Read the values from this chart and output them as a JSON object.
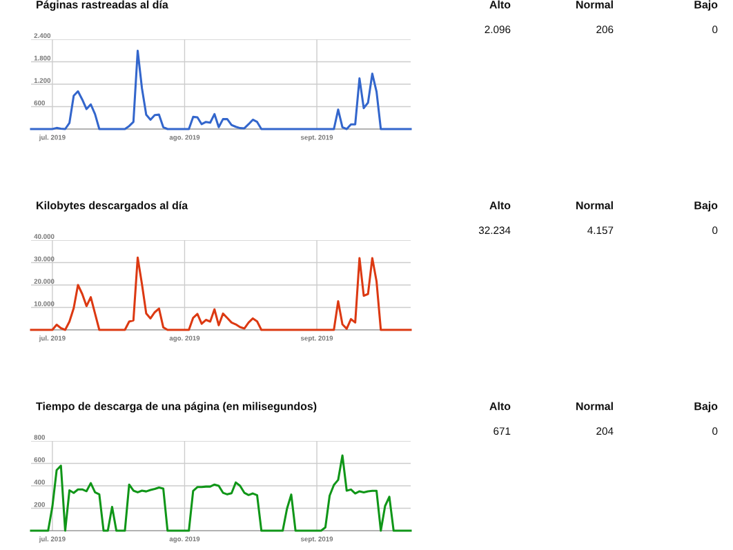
{
  "chart_data": [
    {
      "type": "line",
      "title": "Páginas rastreadas al día",
      "x": [
        "2019-06-26",
        "2019-06-27",
        "2019-06-28",
        "2019-06-29",
        "2019-06-30",
        "2019-07-01",
        "2019-07-02",
        "2019-07-03",
        "2019-07-04",
        "2019-07-05",
        "2019-07-06",
        "2019-07-07",
        "2019-07-08",
        "2019-07-09",
        "2019-07-10",
        "2019-07-11",
        "2019-07-12",
        "2019-07-13",
        "2019-07-14",
        "2019-07-15",
        "2019-07-16",
        "2019-07-17",
        "2019-07-18",
        "2019-07-19",
        "2019-07-20",
        "2019-07-21",
        "2019-07-22",
        "2019-07-23",
        "2019-07-24",
        "2019-07-25",
        "2019-07-26",
        "2019-07-27",
        "2019-07-28",
        "2019-07-29",
        "2019-07-30",
        "2019-07-31",
        "2019-08-01",
        "2019-08-02",
        "2019-08-03",
        "2019-08-04",
        "2019-08-05",
        "2019-08-06",
        "2019-08-07",
        "2019-08-08",
        "2019-08-09",
        "2019-08-10",
        "2019-08-11",
        "2019-08-12",
        "2019-08-13",
        "2019-08-14",
        "2019-08-15",
        "2019-08-16",
        "2019-08-17",
        "2019-08-18",
        "2019-08-19",
        "2019-08-20",
        "2019-08-21",
        "2019-08-22",
        "2019-08-23",
        "2019-08-24",
        "2019-08-25",
        "2019-08-26",
        "2019-08-27",
        "2019-08-28",
        "2019-08-29",
        "2019-08-30",
        "2019-08-31",
        "2019-09-01",
        "2019-09-02",
        "2019-09-03",
        "2019-09-04",
        "2019-09-05",
        "2019-09-06",
        "2019-09-07",
        "2019-09-08",
        "2019-09-09",
        "2019-09-10",
        "2019-09-11",
        "2019-09-12",
        "2019-09-13",
        "2019-09-14",
        "2019-09-15",
        "2019-09-16",
        "2019-09-17",
        "2019-09-18",
        "2019-09-19",
        "2019-09-20",
        "2019-09-21",
        "2019-09-22",
        "2019-09-23"
      ],
      "series": [
        {
          "color": "#3366cc",
          "values": [
            0,
            0,
            0,
            0,
            0,
            0,
            30,
            10,
            0,
            165,
            890,
            1010,
            790,
            535,
            660,
            400,
            0,
            0,
            0,
            0,
            0,
            0,
            0,
            80,
            190,
            2096,
            1090,
            385,
            250,
            375,
            385,
            50,
            0,
            0,
            0,
            0,
            0,
            0,
            325,
            315,
            130,
            190,
            170,
            400,
            50,
            265,
            265,
            110,
            60,
            25,
            20,
            130,
            250,
            190,
            0,
            0,
            0,
            0,
            0,
            0,
            0,
            0,
            0,
            0,
            0,
            0,
            0,
            0,
            0,
            0,
            0,
            0,
            520,
            50,
            0,
            125,
            125,
            1355,
            560,
            705,
            1480,
            1000,
            0,
            0,
            0,
            0,
            0,
            0,
            0,
            0
          ]
        }
      ],
      "xlim": [
        "2019-06-26",
        "2019-09-23"
      ],
      "xticks": [
        {
          "value": "2019-07-01",
          "label": "jul. 2019"
        },
        {
          "value": "2019-08-01",
          "label": "ago. 2019"
        },
        {
          "value": "2019-09-01",
          "label": "sept. 2019"
        }
      ],
      "ylim": [
        0,
        2400
      ],
      "yticks": [
        {
          "value": 600,
          "label": "600"
        },
        {
          "value": 1200,
          "label": "1.200"
        },
        {
          "value": 1800,
          "label": "1.800"
        },
        {
          "value": 2400,
          "label": "2.400"
        }
      ],
      "grid": true,
      "marker": "none",
      "line_style": "solid",
      "annotations": [
        "Alto",
        "Normal",
        "Bajo",
        "2.096",
        "206",
        "0"
      ]
    },
    {
      "type": "line",
      "title": "Kilobytes descargados al día",
      "x": [
        "2019-06-26",
        "2019-06-27",
        "2019-06-28",
        "2019-06-29",
        "2019-06-30",
        "2019-07-01",
        "2019-07-02",
        "2019-07-03",
        "2019-07-04",
        "2019-07-05",
        "2019-07-06",
        "2019-07-07",
        "2019-07-08",
        "2019-07-09",
        "2019-07-10",
        "2019-07-11",
        "2019-07-12",
        "2019-07-13",
        "2019-07-14",
        "2019-07-15",
        "2019-07-16",
        "2019-07-17",
        "2019-07-18",
        "2019-07-19",
        "2019-07-20",
        "2019-07-21",
        "2019-07-22",
        "2019-07-23",
        "2019-07-24",
        "2019-07-25",
        "2019-07-26",
        "2019-07-27",
        "2019-07-28",
        "2019-07-29",
        "2019-07-30",
        "2019-07-31",
        "2019-08-01",
        "2019-08-02",
        "2019-08-03",
        "2019-08-04",
        "2019-08-05",
        "2019-08-06",
        "2019-08-07",
        "2019-08-08",
        "2019-08-09",
        "2019-08-10",
        "2019-08-11",
        "2019-08-12",
        "2019-08-13",
        "2019-08-14",
        "2019-08-15",
        "2019-08-16",
        "2019-08-17",
        "2019-08-18",
        "2019-08-19",
        "2019-08-20",
        "2019-08-21",
        "2019-08-22",
        "2019-08-23",
        "2019-08-24",
        "2019-08-25",
        "2019-08-26",
        "2019-08-27",
        "2019-08-28",
        "2019-08-29",
        "2019-08-30",
        "2019-08-31",
        "2019-09-01",
        "2019-09-02",
        "2019-09-03",
        "2019-09-04",
        "2019-09-05",
        "2019-09-06",
        "2019-09-07",
        "2019-09-08",
        "2019-09-09",
        "2019-09-10",
        "2019-09-11",
        "2019-09-12",
        "2019-09-13",
        "2019-09-14",
        "2019-09-15",
        "2019-09-16",
        "2019-09-17",
        "2019-09-18",
        "2019-09-19",
        "2019-09-20",
        "2019-09-21",
        "2019-09-22",
        "2019-09-23"
      ],
      "series": [
        {
          "color": "#dc3912",
          "values": [
            0,
            0,
            0,
            0,
            0,
            0,
            2300,
            760,
            0,
            3700,
            9700,
            20000,
            16000,
            10600,
            14600,
            7300,
            0,
            0,
            0,
            0,
            0,
            0,
            0,
            3700,
            4250,
            32234,
            20400,
            7300,
            5100,
            7850,
            9500,
            1100,
            0,
            0,
            0,
            0,
            0,
            0,
            5350,
            7100,
            2700,
            4450,
            3700,
            9150,
            2050,
            7250,
            5300,
            3260,
            2450,
            1220,
            610,
            3260,
            5100,
            3770,
            0,
            0,
            0,
            0,
            0,
            0,
            0,
            0,
            0,
            0,
            0,
            0,
            0,
            0,
            0,
            0,
            0,
            0,
            12750,
            2450,
            510,
            4800,
            3260,
            32000,
            15200,
            16000,
            32000,
            21600,
            0,
            0,
            0,
            0,
            0,
            0,
            0,
            0
          ]
        }
      ],
      "xlim": [
        "2019-06-26",
        "2019-09-23"
      ],
      "xticks": [
        {
          "value": "2019-07-01",
          "label": "jul. 2019"
        },
        {
          "value": "2019-08-01",
          "label": "ago. 2019"
        },
        {
          "value": "2019-09-01",
          "label": "sept. 2019"
        }
      ],
      "ylim": [
        0,
        40000
      ],
      "yticks": [
        {
          "value": 10000,
          "label": "10.000"
        },
        {
          "value": 20000,
          "label": "20.000"
        },
        {
          "value": 30000,
          "label": "30.000"
        },
        {
          "value": 40000,
          "label": "40.000"
        }
      ],
      "grid": true,
      "marker": "none",
      "line_style": "solid",
      "annotations": [
        "Alto",
        "Normal",
        "Bajo",
        "32.234",
        "4.157",
        "0"
      ]
    },
    {
      "type": "line",
      "title": "Tiempo de descarga de una página (en milisegundos)",
      "x": [
        "2019-06-26",
        "2019-06-27",
        "2019-06-28",
        "2019-06-29",
        "2019-06-30",
        "2019-07-01",
        "2019-07-02",
        "2019-07-03",
        "2019-07-04",
        "2019-07-05",
        "2019-07-06",
        "2019-07-07",
        "2019-07-08",
        "2019-07-09",
        "2019-07-10",
        "2019-07-11",
        "2019-07-12",
        "2019-07-13",
        "2019-07-14",
        "2019-07-15",
        "2019-07-16",
        "2019-07-17",
        "2019-07-18",
        "2019-07-19",
        "2019-07-20",
        "2019-07-21",
        "2019-07-22",
        "2019-07-23",
        "2019-07-24",
        "2019-07-25",
        "2019-07-26",
        "2019-07-27",
        "2019-07-28",
        "2019-07-29",
        "2019-07-30",
        "2019-07-31",
        "2019-08-01",
        "2019-08-02",
        "2019-08-03",
        "2019-08-04",
        "2019-08-05",
        "2019-08-06",
        "2019-08-07",
        "2019-08-08",
        "2019-08-09",
        "2019-08-10",
        "2019-08-11",
        "2019-08-12",
        "2019-08-13",
        "2019-08-14",
        "2019-08-15",
        "2019-08-16",
        "2019-08-17",
        "2019-08-18",
        "2019-08-19",
        "2019-08-20",
        "2019-08-21",
        "2019-08-22",
        "2019-08-23",
        "2019-08-24",
        "2019-08-25",
        "2019-08-26",
        "2019-08-27",
        "2019-08-28",
        "2019-08-29",
        "2019-08-30",
        "2019-08-31",
        "2019-09-01",
        "2019-09-02",
        "2019-09-03",
        "2019-09-04",
        "2019-09-05",
        "2019-09-06",
        "2019-09-07",
        "2019-09-08",
        "2019-09-09",
        "2019-09-10",
        "2019-09-11",
        "2019-09-12",
        "2019-09-13",
        "2019-09-14",
        "2019-09-15",
        "2019-09-16",
        "2019-09-17",
        "2019-09-18",
        "2019-09-19",
        "2019-09-20",
        "2019-09-21",
        "2019-09-22",
        "2019-09-23"
      ],
      "series": [
        {
          "color": "#109618",
          "values": [
            0,
            0,
            0,
            0,
            0,
            215,
            540,
            580,
            0,
            360,
            337,
            368,
            368,
            352,
            424,
            342,
            324,
            0,
            0,
            212,
            0,
            0,
            0,
            411,
            357,
            342,
            357,
            350,
            363,
            372,
            385,
            376,
            0,
            0,
            0,
            0,
            0,
            0,
            355,
            389,
            389,
            393,
            393,
            411,
            400,
            338,
            324,
            334,
            430,
            400,
            338,
            318,
            332,
            316,
            0,
            0,
            0,
            0,
            0,
            0,
            195,
            322,
            0,
            0,
            0,
            0,
            0,
            0,
            0,
            29,
            312,
            408,
            453,
            671,
            357,
            367,
            332,
            351,
            341,
            351,
            355,
            355,
            0,
            220,
            302,
            0,
            0,
            0,
            0,
            0
          ]
        }
      ],
      "xlim": [
        "2019-06-26",
        "2019-09-23"
      ],
      "xticks": [
        {
          "value": "2019-07-01",
          "label": "jul. 2019"
        },
        {
          "value": "2019-08-01",
          "label": "ago. 2019"
        },
        {
          "value": "2019-09-01",
          "label": "sept. 2019"
        }
      ],
      "ylim": [
        0,
        800
      ],
      "yticks": [
        {
          "value": 200,
          "label": "200"
        },
        {
          "value": 400,
          "label": "400"
        },
        {
          "value": 600,
          "label": "600"
        },
        {
          "value": 800,
          "label": "800"
        }
      ],
      "grid": true,
      "marker": "none",
      "line_style": "solid",
      "annotations": [
        "Alto",
        "Normal",
        "Bajo",
        "671",
        "204",
        "0"
      ]
    }
  ]
}
